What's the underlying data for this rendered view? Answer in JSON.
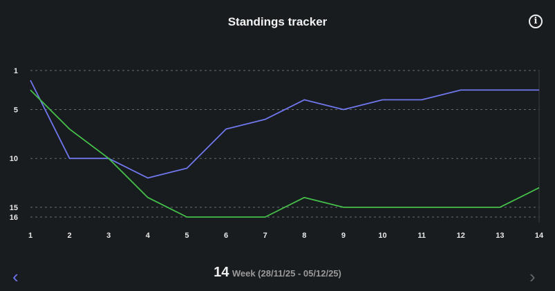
{
  "header": {
    "title": "Standings tracker",
    "info_icon": "info-icon"
  },
  "footer": {
    "week_number": "14",
    "week_label": "Week (28/11/25 - 05/12/25)",
    "prev_icon": "chevron-left-icon",
    "next_icon": "chevron-right-icon"
  },
  "chart_data": {
    "type": "line",
    "title": "Standings tracker",
    "x": [
      1,
      2,
      3,
      4,
      5,
      6,
      7,
      8,
      9,
      10,
      11,
      12,
      13,
      14
    ],
    "x_ticks": [
      "1",
      "2",
      "3",
      "4",
      "5",
      "6",
      "7",
      "8",
      "9",
      "10",
      "11",
      "12",
      "13",
      "14"
    ],
    "y_ticks": [
      "1",
      "5",
      "10",
      "15",
      "16"
    ],
    "ylim": [
      1,
      16
    ],
    "y_inverted": true,
    "grid": "horizontal dashed",
    "series": [
      {
        "name": "blue",
        "color": "#7177ee",
        "values": [
          2,
          10,
          10,
          12,
          11,
          7,
          6,
          4,
          5,
          4,
          4,
          3,
          3,
          3
        ]
      },
      {
        "name": "green",
        "color": "#45c04a",
        "values": [
          3,
          7,
          10,
          14,
          16,
          16,
          16,
          14,
          15,
          15,
          15,
          15,
          15,
          13
        ]
      }
    ]
  }
}
